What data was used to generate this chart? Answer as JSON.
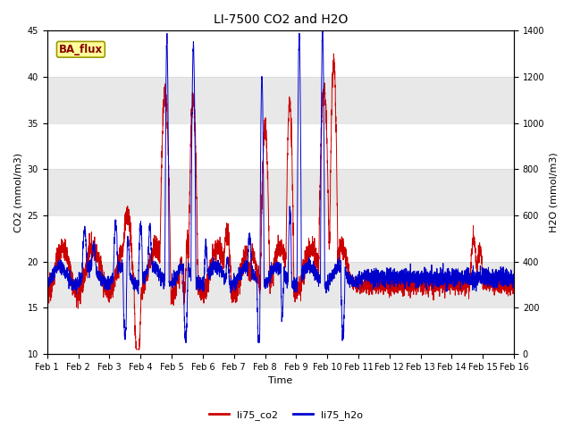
{
  "title": "LI-7500 CO2 and H2O",
  "xlabel": "Time",
  "ylabel_left": "CO2 (mmol/m3)",
  "ylabel_right": "H2O (mmol/m3)",
  "ylim_left": [
    10,
    45
  ],
  "ylim_right": [
    0,
    1400
  ],
  "yticks_left": [
    10,
    15,
    20,
    25,
    30,
    35,
    40,
    45
  ],
  "yticks_right": [
    0,
    200,
    400,
    600,
    800,
    1000,
    1200,
    1400
  ],
  "xtick_labels": [
    "Feb 1",
    "Feb 2",
    "Feb 3",
    "Feb 4",
    "Feb 5",
    "Feb 6",
    "Feb 7",
    "Feb 8",
    "Feb 9",
    "Feb 10",
    "Feb 11",
    "Feb 12",
    "Feb 13",
    "Feb 14",
    "Feb 15",
    "Feb 16"
  ],
  "line_co2_color": "#cc0000",
  "line_h2o_color": "#0000cc",
  "line_width": 0.7,
  "legend_co2": "li75_co2",
  "legend_h2o": "li75_h2o",
  "box_label": "BA_flux",
  "box_facecolor": "#ffff99",
  "box_edgecolor": "#999900",
  "box_textcolor": "#880000",
  "background_color": "#ffffff",
  "band_color": "#e8e8e8",
  "title_fontsize": 10,
  "axis_label_fontsize": 8,
  "tick_fontsize": 7,
  "legend_fontsize": 8
}
